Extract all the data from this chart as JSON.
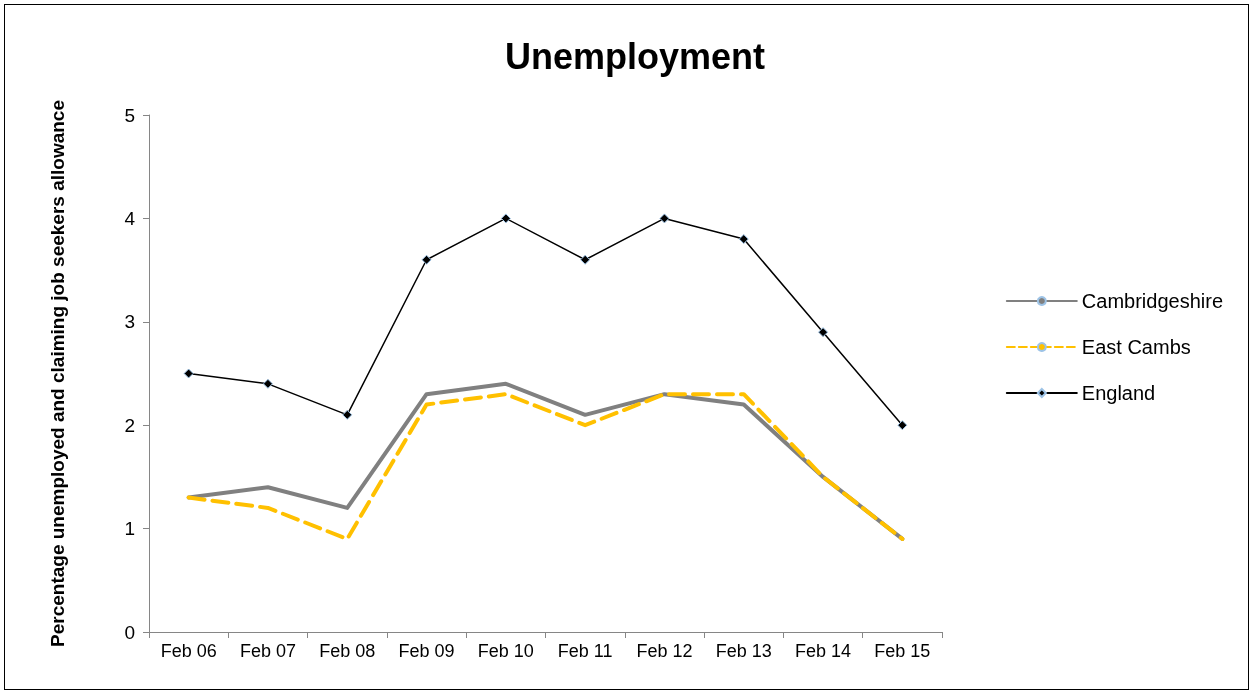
{
  "chart_data": {
    "type": "line",
    "title": "Unemployment",
    "ylabel": "Percentage unemployed and claiming job seekers allowance",
    "categories": [
      "Feb 06",
      "Feb 07",
      "Feb 08",
      "Feb 09",
      "Feb 10",
      "Feb 11",
      "Feb 12",
      "Feb 13",
      "Feb 14",
      "Feb 15"
    ],
    "series": [
      {
        "name": "Cambridgeshire",
        "color": "#808080",
        "line_style": "solid",
        "marker": "none",
        "values": [
          1.3,
          1.4,
          1.2,
          2.3,
          2.4,
          2.1,
          2.3,
          2.2,
          1.5,
          0.9
        ]
      },
      {
        "name": "East Cambs",
        "color": "#ffc000",
        "line_style": "dashed",
        "marker": "none",
        "values": [
          1.3,
          1.2,
          0.9,
          2.2,
          2.3,
          2.0,
          2.3,
          2.3,
          1.5,
          0.9
        ]
      },
      {
        "name": "England",
        "color": "#000000",
        "line_style": "solid",
        "marker": "diamond",
        "values": [
          2.5,
          2.4,
          2.1,
          3.6,
          4.0,
          3.6,
          4.0,
          3.8,
          2.9,
          2.0
        ]
      }
    ],
    "ylim": [
      0,
      5
    ],
    "yticks": [
      0,
      1,
      2,
      3,
      4,
      5
    ],
    "grid": false,
    "legend": "right"
  }
}
